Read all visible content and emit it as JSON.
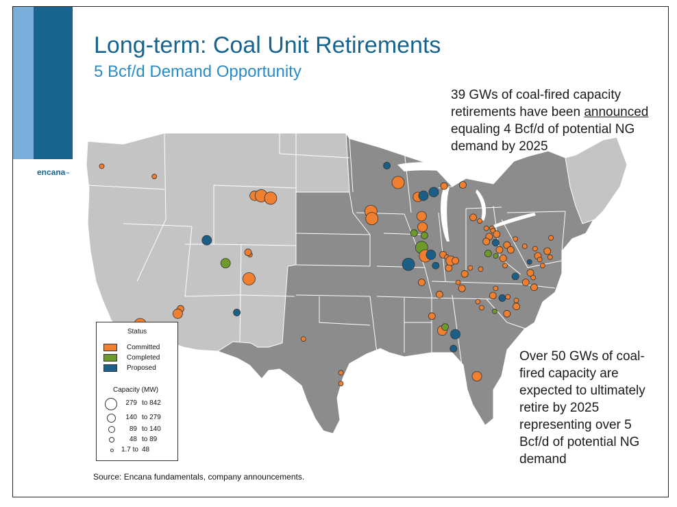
{
  "slide": {
    "title": "Long-term: Coal Unit Retirements",
    "subtitle": "5 Bcf/d Demand Opportunity",
    "logo": "encana",
    "logo_tm": "™",
    "note1_before": "39 GWs of coal-fired capacity retirements have been ",
    "note1_underline": "announced",
    "note1_after": " equaling 4 Bcf/d of potential NG demand by 2025",
    "note2": "Over 50 GWs of coal-fired capacity are expected to ultimately retire by 2025 representing over 5 Bcf/d of potential NG demand",
    "source": "Source: Encana fundamentals, company announcements."
  },
  "legend": {
    "status_title": "Status",
    "status": [
      {
        "label": "Committed",
        "color": "#f07f2f"
      },
      {
        "label": "Completed",
        "color": "#6e9a2c"
      },
      {
        "label": "Proposed",
        "color": "#1c5f86"
      }
    ],
    "capacity_title": "Capacity (MW)",
    "capacity": [
      {
        "lo": "279",
        "hi": "to 842"
      },
      {
        "lo": "140",
        "hi": "to 279"
      },
      {
        "lo": "89",
        "hi": "to 140"
      },
      {
        "lo": "48",
        "hi": "to 89"
      },
      {
        "lo": "1.7 to",
        "hi": "48"
      }
    ]
  },
  "map": {
    "colors": {
      "light_states": "#c4c4c4",
      "dark_states": "#8c8c8c",
      "borders": "#ffffff"
    },
    "plants": [
      {
        "lon": -123.0,
        "lat": 46.75,
        "status": "Committed",
        "size": 2
      },
      {
        "lon": -117.4,
        "lat": 45.9,
        "status": "Committed",
        "size": 2
      },
      {
        "lon": -106.7,
        "lat": 44.3,
        "status": "Committed",
        "size": 4
      },
      {
        "lon": -106.0,
        "lat": 44.3,
        "status": "Committed",
        "size": 5
      },
      {
        "lon": -105.0,
        "lat": 44.1,
        "status": "Committed",
        "size": 5
      },
      {
        "lon": -111.8,
        "lat": 40.6,
        "status": "Proposed",
        "size": 4
      },
      {
        "lon": -109.8,
        "lat": 38.7,
        "status": "Completed",
        "size": 4
      },
      {
        "lon": -107.2,
        "lat": 39.4,
        "status": "Committed",
        "size": 2
      },
      {
        "lon": -107.4,
        "lat": 39.6,
        "status": "Committed",
        "size": 3
      },
      {
        "lon": -107.3,
        "lat": 37.4,
        "status": "Committed",
        "size": 5
      },
      {
        "lon": -108.6,
        "lat": 34.6,
        "status": "Proposed",
        "size": 3
      },
      {
        "lon": -114.6,
        "lat": 34.9,
        "status": "Committed",
        "size": 3
      },
      {
        "lon": -114.9,
        "lat": 34.5,
        "status": "Committed",
        "size": 4
      },
      {
        "lon": -118.9,
        "lat": 33.6,
        "status": "Committed",
        "size": 5
      },
      {
        "lon": -101.5,
        "lat": 32.4,
        "status": "Committed",
        "size": 2
      },
      {
        "lon": -97.5,
        "lat": 29.6,
        "status": "Committed",
        "size": 2
      },
      {
        "lon": -97.5,
        "lat": 28.7,
        "status": "Committed",
        "size": 2
      },
      {
        "lon": -92.6,
        "lat": 46.8,
        "status": "Proposed",
        "size": 3
      },
      {
        "lon": -94.3,
        "lat": 43.0,
        "status": "Committed",
        "size": 5
      },
      {
        "lon": -94.2,
        "lat": 42.4,
        "status": "Committed",
        "size": 5
      },
      {
        "lon": -91.4,
        "lat": 45.4,
        "status": "Committed",
        "size": 5
      },
      {
        "lon": -89.3,
        "lat": 44.2,
        "status": "Committed",
        "size": 4
      },
      {
        "lon": -88.7,
        "lat": 44.3,
        "status": "Proposed",
        "size": 4
      },
      {
        "lon": -87.6,
        "lat": 44.6,
        "status": "Proposed",
        "size": 4
      },
      {
        "lon": -86.5,
        "lat": 45.1,
        "status": "Committed",
        "size": 3
      },
      {
        "lon": -88.8,
        "lat": 42.7,
        "status": "Committed",
        "size": 2
      },
      {
        "lon": -88.9,
        "lat": 42.6,
        "status": "Committed",
        "size": 4
      },
      {
        "lon": -89.7,
        "lat": 41.2,
        "status": "Completed",
        "size": 3
      },
      {
        "lon": -88.8,
        "lat": 41.7,
        "status": "Committed",
        "size": 4
      },
      {
        "lon": -88.6,
        "lat": 41.0,
        "status": "Completed",
        "size": 3
      },
      {
        "lon": -88.9,
        "lat": 40.0,
        "status": "Completed",
        "size": 5
      },
      {
        "lon": -88.5,
        "lat": 39.3,
        "status": "Committed",
        "size": 5
      },
      {
        "lon": -90.3,
        "lat": 38.9,
        "status": "Proposed",
        "size": 2
      },
      {
        "lon": -90.3,
        "lat": 38.6,
        "status": "Proposed",
        "size": 5
      },
      {
        "lon": -87.9,
        "lat": 39.4,
        "status": "Proposed",
        "size": 4
      },
      {
        "lon": -87.4,
        "lat": 38.5,
        "status": "Proposed",
        "size": 3
      },
      {
        "lon": -86.6,
        "lat": 39.4,
        "status": "Committed",
        "size": 3
      },
      {
        "lon": -86.2,
        "lat": 39.2,
        "status": "Committed",
        "size": 2
      },
      {
        "lon": -86.0,
        "lat": 38.3,
        "status": "Committed",
        "size": 3
      },
      {
        "lon": -88.9,
        "lat": 37.1,
        "status": "Committed",
        "size": 3
      },
      {
        "lon": -83.4,
        "lat": 42.5,
        "status": "Committed",
        "size": 3
      },
      {
        "lon": -82.7,
        "lat": 42.2,
        "status": "Committed",
        "size": 2
      },
      {
        "lon": -84.5,
        "lat": 45.2,
        "status": "Committed",
        "size": 3
      },
      {
        "lon": -82.0,
        "lat": 41.6,
        "status": "Committed",
        "size": 2
      },
      {
        "lon": -81.4,
        "lat": 41.6,
        "status": "Committed",
        "size": 2
      },
      {
        "lon": -81.3,
        "lat": 41.4,
        "status": "Committed",
        "size": 2
      },
      {
        "lon": -81.7,
        "lat": 40.9,
        "status": "Committed",
        "size": 3
      },
      {
        "lon": -80.9,
        "lat": 41.1,
        "status": "Committed",
        "size": 3
      },
      {
        "lon": -82.0,
        "lat": 40.5,
        "status": "Committed",
        "size": 3
      },
      {
        "lon": -81.0,
        "lat": 40.4,
        "status": "Proposed",
        "size": 3
      },
      {
        "lon": -81.0,
        "lat": 39.3,
        "status": "Completed",
        "size": 2
      },
      {
        "lon": -81.8,
        "lat": 39.5,
        "status": "Completed",
        "size": 3
      },
      {
        "lon": -80.6,
        "lat": 39.8,
        "status": "Committed",
        "size": 3
      },
      {
        "lon": -79.8,
        "lat": 40.2,
        "status": "Committed",
        "size": 3
      },
      {
        "lon": -79.4,
        "lat": 39.8,
        "status": "Committed",
        "size": 3
      },
      {
        "lon": -78.9,
        "lat": 40.7,
        "status": "Committed",
        "size": 2
      },
      {
        "lon": -77.9,
        "lat": 40.1,
        "status": "Committed",
        "size": 2
      },
      {
        "lon": -76.8,
        "lat": 39.9,
        "status": "Committed",
        "size": 2
      },
      {
        "lon": -76.5,
        "lat": 39.3,
        "status": "Committed",
        "size": 3
      },
      {
        "lon": -76.3,
        "lat": 39.0,
        "status": "Committed",
        "size": 2
      },
      {
        "lon": -75.5,
        "lat": 39.7,
        "status": "Committed",
        "size": 3
      },
      {
        "lon": -75.2,
        "lat": 39.2,
        "status": "Committed",
        "size": 2
      },
      {
        "lon": -75.1,
        "lat": 40.8,
        "status": "Committed",
        "size": 2
      },
      {
        "lon": -76.0,
        "lat": 38.5,
        "status": "Committed",
        "size": 2
      },
      {
        "lon": -77.4,
        "lat": 38.8,
        "status": "Proposed",
        "size": 2
      },
      {
        "lon": -78.9,
        "lat": 37.6,
        "status": "Proposed",
        "size": 3
      },
      {
        "lon": -77.3,
        "lat": 37.9,
        "status": "Committed",
        "size": 3
      },
      {
        "lon": -77.8,
        "lat": 37.1,
        "status": "Committed",
        "size": 3
      },
      {
        "lon": -77.0,
        "lat": 37.5,
        "status": "Committed",
        "size": 2
      },
      {
        "lon": -76.9,
        "lat": 36.7,
        "status": "Committed",
        "size": 3
      },
      {
        "lon": -80.2,
        "lat": 39.1,
        "status": "Committed",
        "size": 3
      },
      {
        "lon": -80.0,
        "lat": 38.5,
        "status": "Committed",
        "size": 2
      },
      {
        "lon": -82.6,
        "lat": 38.2,
        "status": "Committed",
        "size": 2
      },
      {
        "lon": -83.7,
        "lat": 38.3,
        "status": "Committed",
        "size": 2
      },
      {
        "lon": -84.3,
        "lat": 37.8,
        "status": "Committed",
        "size": 3
      },
      {
        "lon": -84.6,
        "lat": 36.6,
        "status": "Committed",
        "size": 3
      },
      {
        "lon": -85.0,
        "lat": 37.1,
        "status": "Committed",
        "size": 2
      },
      {
        "lon": -85.8,
        "lat": 38.9,
        "status": "Committed",
        "size": 4
      },
      {
        "lon": -85.3,
        "lat": 38.9,
        "status": "Committed",
        "size": 3
      },
      {
        "lon": -87.0,
        "lat": 36.1,
        "status": "Committed",
        "size": 3
      },
      {
        "lon": -81.0,
        "lat": 36.6,
        "status": "Committed",
        "size": 2
      },
      {
        "lon": -81.3,
        "lat": 36.0,
        "status": "Committed",
        "size": 3
      },
      {
        "lon": -80.3,
        "lat": 35.8,
        "status": "Proposed",
        "size": 3
      },
      {
        "lon": -79.7,
        "lat": 35.9,
        "status": "Committed",
        "size": 2
      },
      {
        "lon": -78.8,
        "lat": 35.6,
        "status": "Committed",
        "size": 2
      },
      {
        "lon": -78.8,
        "lat": 35.1,
        "status": "Committed",
        "size": 3
      },
      {
        "lon": -82.5,
        "lat": 35.0,
        "status": "Committed",
        "size": 2
      },
      {
        "lon": -82.9,
        "lat": 35.5,
        "status": "Committed",
        "size": 2
      },
      {
        "lon": -81.1,
        "lat": 34.7,
        "status": "Completed",
        "size": 2
      },
      {
        "lon": -79.8,
        "lat": 34.5,
        "status": "Committed",
        "size": 3
      },
      {
        "lon": -87.8,
        "lat": 34.3,
        "status": "Committed",
        "size": 3
      },
      {
        "lon": -86.7,
        "lat": 33.1,
        "status": "Committed",
        "size": 4
      },
      {
        "lon": -86.4,
        "lat": 33.4,
        "status": "Completed",
        "size": 3
      },
      {
        "lon": -85.3,
        "lat": 32.8,
        "status": "Proposed",
        "size": 4
      },
      {
        "lon": -85.5,
        "lat": 31.6,
        "status": "Proposed",
        "size": 3
      },
      {
        "lon": -83.0,
        "lat": 29.3,
        "status": "Committed",
        "size": 4
      }
    ]
  }
}
